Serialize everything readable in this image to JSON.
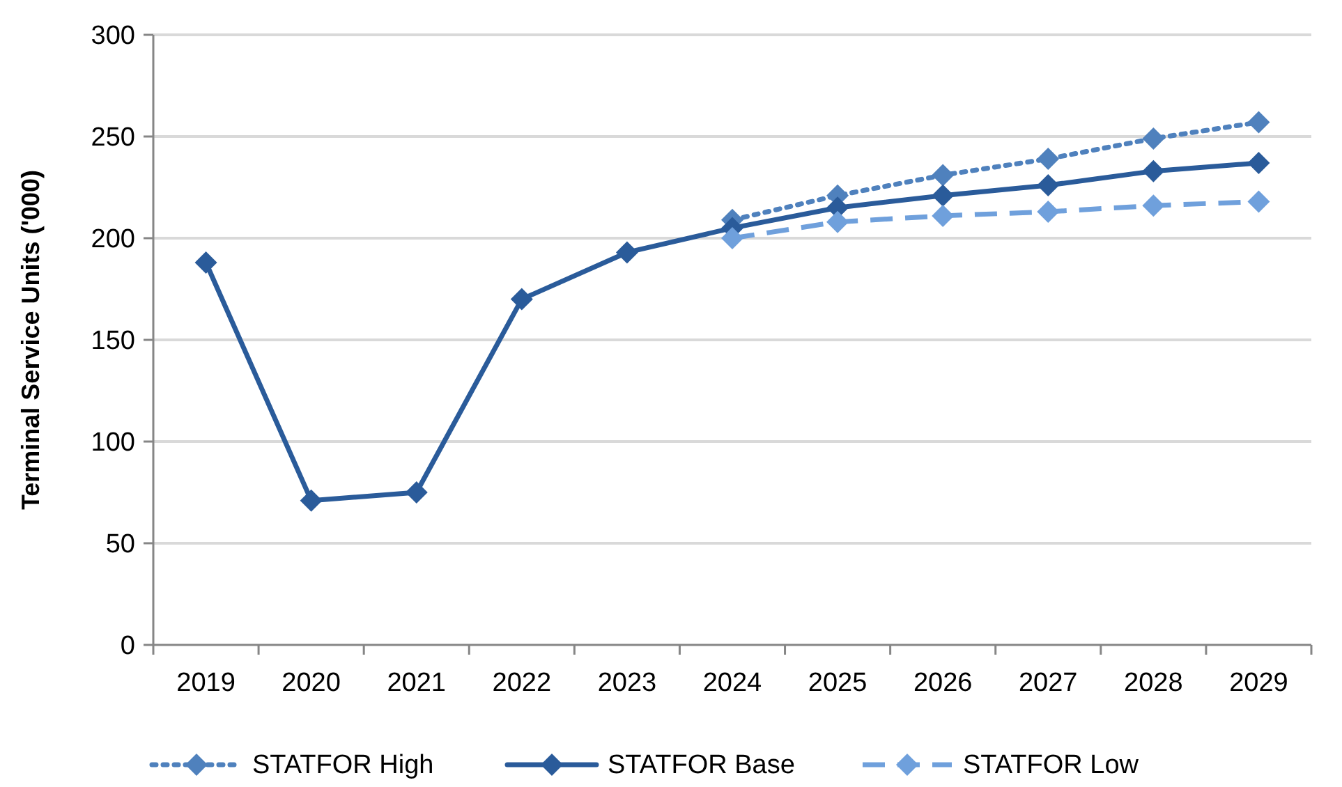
{
  "chart_data": {
    "type": "line",
    "ylabel": "Terminal Service Units ('000)",
    "categories": [
      "2019",
      "2020",
      "2021",
      "2022",
      "2023",
      "2024",
      "2025",
      "2026",
      "2027",
      "2028",
      "2029"
    ],
    "series": [
      {
        "name": "STATFOR High",
        "color": "#4f81bd",
        "line_style": "dotted",
        "values": [
          null,
          null,
          null,
          null,
          null,
          209,
          221,
          231,
          239,
          249,
          257
        ]
      },
      {
        "name": "STATFOR Base",
        "color": "#2a5b9a",
        "line_style": "solid",
        "values": [
          188,
          71,
          75,
          170,
          193,
          205,
          215,
          221,
          226,
          233,
          237
        ]
      },
      {
        "name": "STATFOR Low",
        "color": "#6fa0dc",
        "line_style": "dashed",
        "values": [
          null,
          null,
          null,
          null,
          null,
          200,
          208,
          211,
          213,
          216,
          218
        ]
      }
    ],
    "ylim": [
      0,
      300
    ],
    "yticks": [
      0,
      50,
      100,
      150,
      200,
      250,
      300
    ],
    "grid": "y",
    "legend": "bottom",
    "marker": "diamond"
  }
}
